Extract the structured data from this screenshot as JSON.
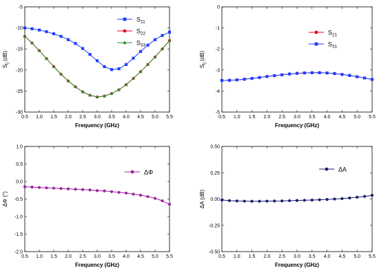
{
  "chart_data": [
    {
      "id": "s_reflection",
      "type": "line",
      "xlabel": "Frequency (GHz)",
      "ylabel": "S",
      "ylabel_sub": "ij",
      "ylabel_unit": " (dB)",
      "xlim": [
        0.5,
        5.5
      ],
      "ylim": [
        -30,
        -5
      ],
      "xticks": [
        "0.5",
        "1.0",
        "1.5",
        "2.0",
        "2.5",
        "3.0",
        "3.5",
        "4.0",
        "4.5",
        "5.0",
        "5.5"
      ],
      "yticks": [
        "-30",
        "-25",
        "-20",
        "-15",
        "-10",
        "-5"
      ],
      "legend_position": "top-right",
      "x": [
        0.5,
        0.75,
        1.0,
        1.25,
        1.5,
        1.75,
        2.0,
        2.25,
        2.5,
        2.75,
        3.0,
        3.25,
        3.5,
        3.75,
        4.0,
        4.25,
        4.5,
        4.75,
        5.0,
        5.25,
        5.5
      ],
      "series": [
        {
          "name": "S",
          "sub": "11",
          "color": "#1f3fff",
          "marker": "square",
          "values": [
            -10.0,
            -10.2,
            -10.5,
            -10.9,
            -11.4,
            -12.0,
            -12.8,
            -13.7,
            -14.9,
            -16.3,
            -17.8,
            -19.2,
            -19.9,
            -19.7,
            -18.7,
            -17.2,
            -15.6,
            -14.1,
            -12.8,
            -11.8,
            -11.0
          ]
        },
        {
          "name": "S",
          "sub": "22",
          "color": "#e8001c",
          "marker": "circle",
          "values": [
            -12.0,
            -13.6,
            -15.4,
            -17.3,
            -19.2,
            -21.0,
            -22.6,
            -24.0,
            -25.2,
            -26.0,
            -26.4,
            -26.2,
            -25.6,
            -24.7,
            -23.5,
            -22.0,
            -20.4,
            -18.7,
            -16.9,
            -15.0,
            -13.0
          ]
        },
        {
          "name": "S",
          "sub": "33",
          "color": "#2e8b2e",
          "marker": "triangle",
          "values": [
            -12.0,
            -13.6,
            -15.4,
            -17.3,
            -19.2,
            -21.0,
            -22.6,
            -24.0,
            -25.2,
            -26.0,
            -26.4,
            -26.2,
            -25.6,
            -24.7,
            -23.5,
            -22.0,
            -20.4,
            -18.7,
            -16.9,
            -15.0,
            -13.0
          ]
        }
      ]
    },
    {
      "id": "s_transmission",
      "type": "line",
      "xlabel": "Frequency (GHz)",
      "ylabel": "S",
      "ylabel_sub": "ij",
      "ylabel_unit": " (dB)",
      "xlim": [
        0.5,
        5.5
      ],
      "ylim": [
        -5,
        0
      ],
      "xticks": [
        "0.5",
        "1.0",
        "1.5",
        "2.0",
        "2.5",
        "3.0",
        "3.5",
        "4.0",
        "4.5",
        "5.0",
        "5.5"
      ],
      "yticks": [
        "-5",
        "-4",
        "-3",
        "-2",
        "-1",
        "0"
      ],
      "legend_position": "top-right",
      "x": [
        0.5,
        0.75,
        1.0,
        1.25,
        1.5,
        1.75,
        2.0,
        2.25,
        2.5,
        2.75,
        3.0,
        3.25,
        3.5,
        3.75,
        4.0,
        4.25,
        4.5,
        4.75,
        5.0,
        5.25,
        5.5
      ],
      "series": [
        {
          "name": "S",
          "sub": "21",
          "color": "#e8001c",
          "marker": "circle",
          "values": [
            -3.5,
            -3.49,
            -3.47,
            -3.44,
            -3.4,
            -3.36,
            -3.31,
            -3.27,
            -3.23,
            -3.19,
            -3.16,
            -3.14,
            -3.13,
            -3.13,
            -3.14,
            -3.17,
            -3.21,
            -3.26,
            -3.32,
            -3.38,
            -3.45
          ]
        },
        {
          "name": "S",
          "sub": "31",
          "color": "#1f3fff",
          "marker": "square",
          "values": [
            -3.5,
            -3.49,
            -3.47,
            -3.44,
            -3.4,
            -3.36,
            -3.31,
            -3.27,
            -3.23,
            -3.19,
            -3.16,
            -3.14,
            -3.13,
            -3.13,
            -3.14,
            -3.17,
            -3.21,
            -3.26,
            -3.32,
            -3.38,
            -3.45
          ]
        }
      ]
    },
    {
      "id": "phase_diff",
      "type": "line",
      "xlabel": "Frequency (GHz)",
      "ylabel": "ΔΦ (°)",
      "xlim": [
        0.5,
        5.5
      ],
      "ylim": [
        -2.0,
        1.0
      ],
      "xticks": [
        "0.5",
        "1.0",
        "1.5",
        "2.0",
        "2.5",
        "3.0",
        "3.5",
        "4.0",
        "4.5",
        "5.0",
        "5.5"
      ],
      "yticks": [
        "-2.0",
        "-1.5",
        "-1.0",
        "-0.5",
        "0.0",
        "0.5",
        "1.0"
      ],
      "legend_position": "upper-right",
      "x": [
        0.5,
        0.75,
        1.0,
        1.25,
        1.5,
        1.75,
        2.0,
        2.25,
        2.5,
        2.75,
        3.0,
        3.25,
        3.5,
        3.75,
        4.0,
        4.25,
        4.5,
        4.75,
        5.0,
        5.25,
        5.5
      ],
      "series": [
        {
          "name": "ΔΦ",
          "color": "#a020a0",
          "marker": "circle",
          "values": [
            -0.15,
            -0.16,
            -0.17,
            -0.18,
            -0.19,
            -0.2,
            -0.21,
            -0.22,
            -0.23,
            -0.24,
            -0.26,
            -0.27,
            -0.29,
            -0.31,
            -0.33,
            -0.36,
            -0.39,
            -0.43,
            -0.48,
            -0.55,
            -0.65
          ]
        }
      ]
    },
    {
      "id": "amp_diff",
      "type": "line",
      "xlabel": "Frequency (GHz)",
      "ylabel": "ΔA (dB)",
      "xlim": [
        0.5,
        5.5
      ],
      "ylim": [
        -0.5,
        0.5
      ],
      "xticks": [
        "0.5",
        "1.0",
        "1.5",
        "2.0",
        "2.5",
        "3.0",
        "3.5",
        "4.0",
        "4.5",
        "5.0",
        "5.5"
      ],
      "yticks": [
        "-0.50",
        "-0.25",
        "0.00",
        "0.25",
        "0.50"
      ],
      "legend_position": "upper-right",
      "x": [
        0.5,
        0.75,
        1.0,
        1.25,
        1.5,
        1.75,
        2.0,
        2.25,
        2.5,
        2.75,
        3.0,
        3.25,
        3.5,
        3.75,
        4.0,
        4.25,
        4.5,
        4.75,
        5.0,
        5.25,
        5.5
      ],
      "series": [
        {
          "name": "ΔA",
          "color": "#1a1a6e",
          "marker": "circle",
          "values": [
            -0.01,
            -0.015,
            -0.018,
            -0.02,
            -0.021,
            -0.021,
            -0.02,
            -0.019,
            -0.018,
            -0.016,
            -0.014,
            -0.012,
            -0.01,
            -0.007,
            -0.004,
            0.0,
            0.004,
            0.01,
            0.017,
            0.025,
            0.035
          ]
        }
      ]
    }
  ]
}
